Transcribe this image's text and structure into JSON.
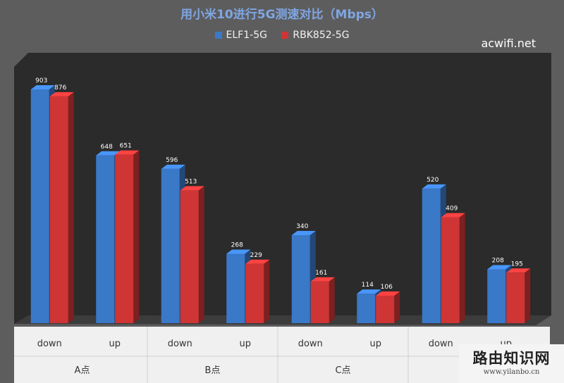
{
  "chart_data": {
    "type": "bar",
    "title": "用小米10进行5G测速对比（Mbps）",
    "categories": [
      "down",
      "up",
      "down",
      "up",
      "down",
      "up",
      "down",
      "up"
    ],
    "groups": [
      "A点",
      "B点",
      "C点",
      ""
    ],
    "series": [
      {
        "name": "ELF1-5G",
        "color": "#3a78c8",
        "values": [
          903,
          648,
          596,
          268,
          340,
          114,
          520,
          208
        ]
      },
      {
        "name": "RBK852-5G",
        "color": "#cf3535",
        "values": [
          876,
          651,
          513,
          229,
          161,
          106,
          409,
          195
        ]
      }
    ],
    "ylim": [
      0,
      1000
    ],
    "legend": "top-center",
    "grid": false
  },
  "watermarks": {
    "corner": "acwifi.net",
    "site_name": "路由知识网",
    "site_url": "www.yilanbo.cn"
  }
}
